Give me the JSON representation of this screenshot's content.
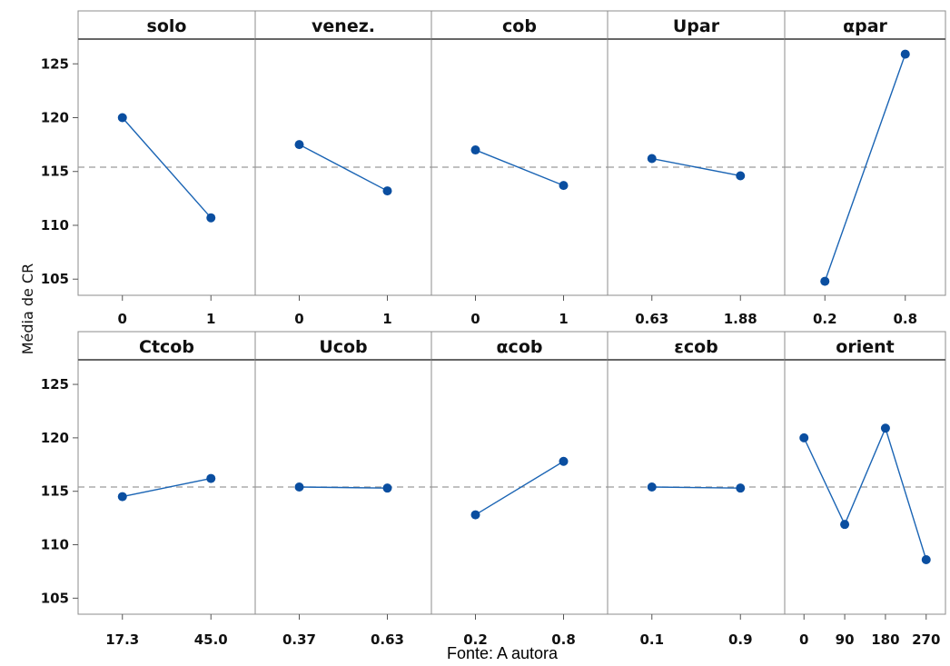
{
  "chart_data": {
    "type": "line",
    "ylabel": "Média de CR",
    "ylim": [
      103.5,
      127.3
    ],
    "yticks": [
      105,
      110,
      115,
      120,
      125
    ],
    "reference_line": 115.4,
    "grid": false,
    "panels": [
      {
        "title": "solo",
        "categories": [
          "0",
          "1"
        ],
        "values": [
          120.0,
          110.7
        ]
      },
      {
        "title": "venez.",
        "categories": [
          "0",
          "1"
        ],
        "values": [
          117.5,
          113.2
        ]
      },
      {
        "title": "cob",
        "categories": [
          "0",
          "1"
        ],
        "values": [
          117.0,
          113.7
        ]
      },
      {
        "title": "Upar",
        "categories": [
          "0.63",
          "1.88"
        ],
        "values": [
          116.2,
          114.6
        ]
      },
      {
        "title": "αpar",
        "categories": [
          "0.2",
          "0.8"
        ],
        "values": [
          104.8,
          125.9
        ]
      },
      {
        "title": "Ctcob",
        "categories": [
          "17.3",
          "45.0"
        ],
        "values": [
          114.5,
          116.2
        ]
      },
      {
        "title": "Ucob",
        "categories": [
          "0.37",
          "0.63"
        ],
        "values": [
          115.4,
          115.3
        ]
      },
      {
        "title": "αcob",
        "categories": [
          "0.2",
          "0.8"
        ],
        "values": [
          112.8,
          117.8
        ]
      },
      {
        "title": "εcob",
        "categories": [
          "0.1",
          "0.9"
        ],
        "values": [
          115.4,
          115.3
        ]
      },
      {
        "title": "orient",
        "categories": [
          "0",
          "90",
          "180",
          "270"
        ],
        "values": [
          120.0,
          111.9,
          120.9,
          108.6
        ]
      }
    ]
  },
  "source": "Fonte: A autora"
}
